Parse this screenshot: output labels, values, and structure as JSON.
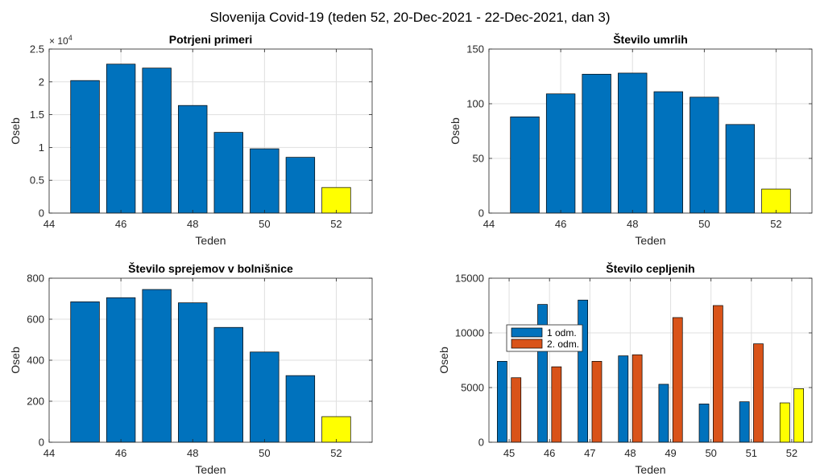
{
  "figure": {
    "title": "Slovenija Covid-19 (teden 52, 20-Dec-2021 - 22-Dec-2021, dan 3)"
  },
  "colors": {
    "blue": "#0072BD",
    "orange": "#D95319",
    "yellow": "#FFFF00",
    "grid": "#DFDFDF",
    "axis": "#262626"
  },
  "chart_data": [
    {
      "type": "bar",
      "title": "Potrjeni primeri",
      "xlabel": "Teden",
      "ylabel": "Oseb",
      "exponent_label": "× 10",
      "exponent_power": "4",
      "xlim": [
        44,
        53
      ],
      "ylim": [
        0,
        25000
      ],
      "xticks": [
        44,
        46,
        48,
        50,
        52
      ],
      "yticks": [
        0,
        5000,
        10000,
        15000,
        20000,
        25000
      ],
      "ytick_labels": [
        "0",
        "0.5",
        "1",
        "1.5",
        "2",
        "2.5"
      ],
      "grid": true,
      "x": [
        45,
        46,
        47,
        48,
        49,
        50,
        51,
        52
      ],
      "values": [
        20200,
        22700,
        22100,
        16400,
        12300,
        9800,
        8500,
        3900
      ],
      "highlight_last": true
    },
    {
      "type": "bar",
      "title": "Število umrlih",
      "xlabel": "Teden",
      "ylabel": "Oseb",
      "xlim": [
        44,
        53
      ],
      "ylim": [
        0,
        150
      ],
      "xticks": [
        44,
        46,
        48,
        50,
        52
      ],
      "yticks": [
        0,
        50,
        100,
        150
      ],
      "ytick_labels": [
        "0",
        "50",
        "100",
        "150"
      ],
      "grid": true,
      "x": [
        45,
        46,
        47,
        48,
        49,
        50,
        51,
        52
      ],
      "values": [
        88,
        109,
        127,
        128,
        111,
        106,
        81,
        22
      ],
      "highlight_last": true
    },
    {
      "type": "bar",
      "title": "Število sprejemov v bolnišnice",
      "xlabel": "Teden",
      "ylabel": "Oseb",
      "xlim": [
        44,
        53
      ],
      "ylim": [
        0,
        800
      ],
      "xticks": [
        44,
        46,
        48,
        50,
        52
      ],
      "yticks": [
        0,
        200,
        400,
        600,
        800
      ],
      "ytick_labels": [
        "0",
        "200",
        "400",
        "600",
        "800"
      ],
      "grid": true,
      "x": [
        45,
        46,
        47,
        48,
        49,
        50,
        51,
        52
      ],
      "values": [
        685,
        705,
        745,
        680,
        560,
        440,
        325,
        125
      ],
      "highlight_last": true
    },
    {
      "type": "bar",
      "title": "Število cepljenih",
      "xlabel": "Teden",
      "ylabel": "Oseb",
      "ylim": [
        0,
        15000
      ],
      "categories": [
        "45",
        "46",
        "47",
        "48",
        "49",
        "50",
        "51",
        "52"
      ],
      "yticks": [
        0,
        5000,
        10000,
        15000
      ],
      "ytick_labels": [
        "0",
        "5000",
        "10000",
        "15000"
      ],
      "grid": true,
      "legend_position": "upper-left",
      "series": [
        {
          "name": "1 odm.",
          "values": [
            7400,
            12600,
            13000,
            7900,
            5300,
            3500,
            3700,
            3600
          ]
        },
        {
          "name": "2. odm.",
          "values": [
            5900,
            6900,
            7400,
            8000,
            11400,
            12500,
            9000,
            4900
          ]
        }
      ],
      "highlight_last": true
    }
  ]
}
